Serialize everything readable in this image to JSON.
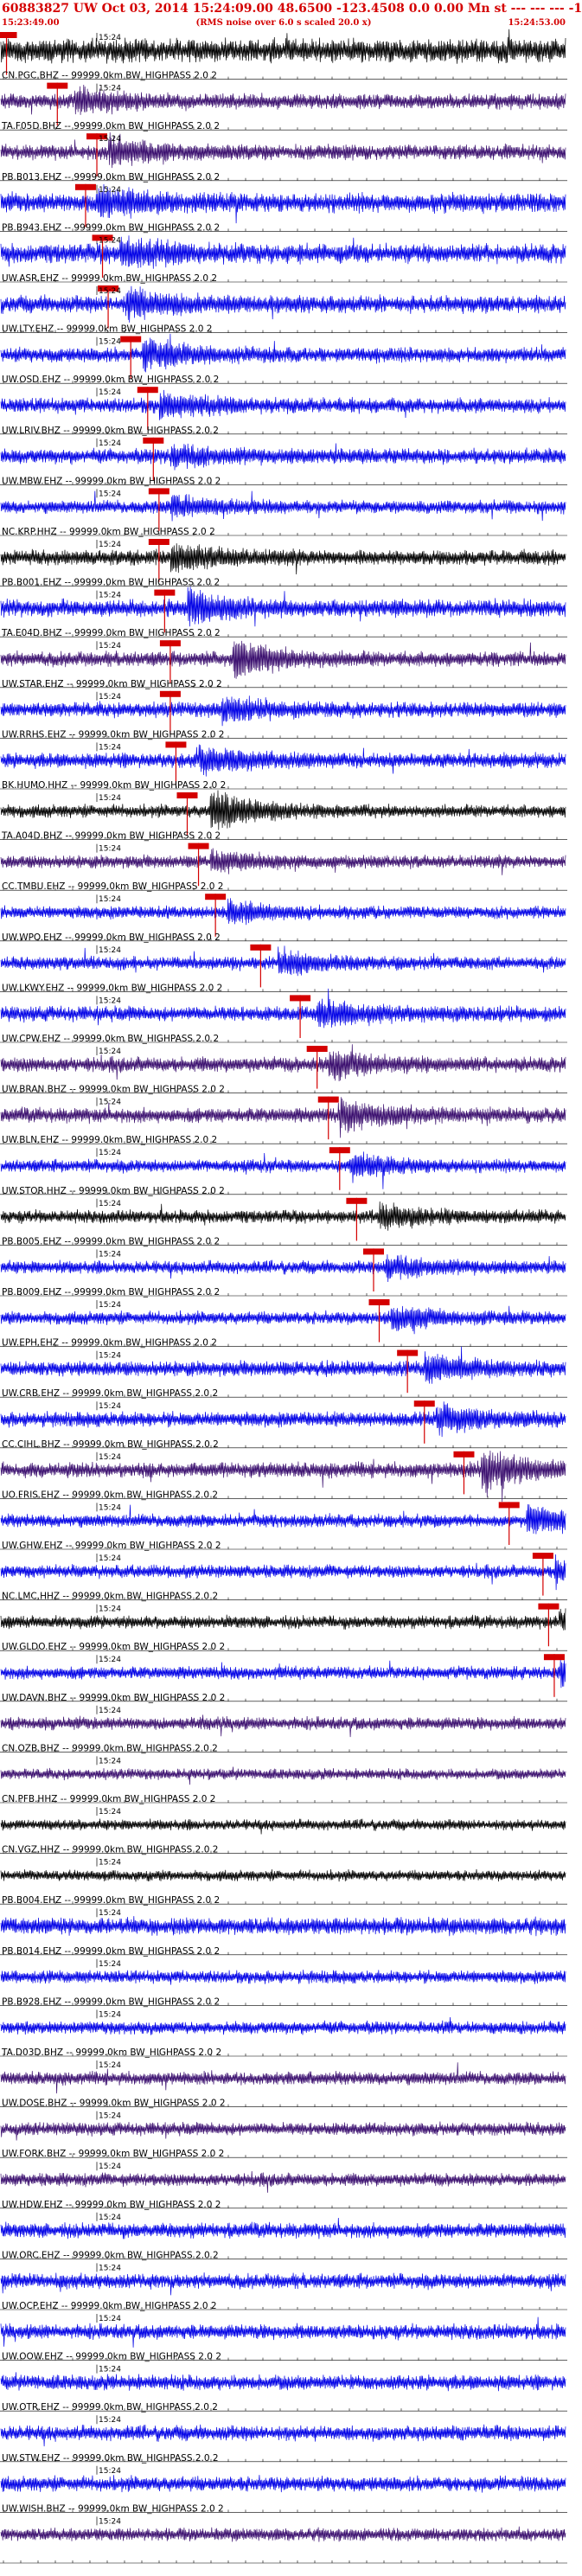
{
  "header": {
    "title": "60883827 UW Oct 03, 2014 15:24:09.00   48.6500  -123.4508   0.0  0.00  Mn st  ---  ---  ---   -1",
    "start_time": "15:23:49.00",
    "rms_note": "(RMS noise over 6.0 s scaled 20.0 x)",
    "end_time": "15:24:53.00"
  },
  "time_tick_label": "15:24",
  "filter_suffix": " -- 99999.0km BW_HIGHPASS  2.0  2",
  "colors": {
    "blue": "#0000e6",
    "black": "#000000",
    "purple": "#3a0e6e",
    "red": "#d40000"
  },
  "traces": [
    {
      "label": "",
      "color": "black",
      "pick": 0.01,
      "amp": 0.55,
      "burst": 0.0,
      "burst_amp": 0.0
    },
    {
      "label": "CN.PGC.BHZ",
      "color": "purple",
      "pick": 0.1,
      "amp": 0.35,
      "burst": 0.13,
      "burst_amp": 0.5
    },
    {
      "label": "TA.F05D.BHZ",
      "color": "purple",
      "pick": 0.17,
      "amp": 0.35,
      "burst": 0.19,
      "burst_amp": 0.6
    },
    {
      "label": "PB.B013.EHZ",
      "color": "blue",
      "pick": 0.15,
      "amp": 0.45,
      "burst": 0.17,
      "burst_amp": 0.55
    },
    {
      "label": "PB.B943.EHZ",
      "color": "blue",
      "pick": 0.18,
      "amp": 0.45,
      "burst": 0.21,
      "burst_amp": 0.55
    },
    {
      "label": "UW.ASR.EHZ",
      "color": "blue",
      "pick": 0.19,
      "amp": 0.4,
      "burst": 0.22,
      "burst_amp": 0.6
    },
    {
      "label": "UW.LTY.EHZ",
      "color": "blue",
      "pick": 0.23,
      "amp": 0.35,
      "burst": 0.25,
      "burst_amp": 0.55
    },
    {
      "label": "UW.OSD.EHZ",
      "color": "blue",
      "pick": 0.26,
      "amp": 0.35,
      "burst": 0.28,
      "burst_amp": 0.5
    },
    {
      "label": "UW.LRIV.BHZ",
      "color": "blue",
      "pick": 0.27,
      "amp": 0.35,
      "burst": 0.3,
      "burst_amp": 0.45
    },
    {
      "label": "UW.MBW.EHZ",
      "color": "blue",
      "pick": 0.28,
      "amp": 0.3,
      "burst": 0.3,
      "burst_amp": 0.45
    },
    {
      "label": "NC.KRP.HHZ",
      "color": "black",
      "pick": 0.28,
      "amp": 0.35,
      "burst": 0.3,
      "burst_amp": 0.55
    },
    {
      "label": "PB.B001.EHZ",
      "color": "blue",
      "pick": 0.29,
      "amp": 0.4,
      "burst": 0.33,
      "burst_amp": 0.6
    },
    {
      "label": "TA.E04D.BHZ",
      "color": "purple",
      "pick": 0.3,
      "amp": 0.35,
      "burst": 0.41,
      "burst_amp": 0.75
    },
    {
      "label": "UW.STAR.EHZ",
      "color": "blue",
      "pick": 0.3,
      "amp": 0.35,
      "burst": 0.39,
      "burst_amp": 0.45
    },
    {
      "label": "UW.RRHS.EHZ",
      "color": "blue",
      "pick": 0.31,
      "amp": 0.35,
      "burst": 0.35,
      "burst_amp": 0.55
    },
    {
      "label": "BK.HUMO.HHZ",
      "color": "black",
      "pick": 0.33,
      "amp": 0.3,
      "burst": 0.37,
      "burst_amp": 0.85
    },
    {
      "label": "TA.A04D.BHZ",
      "color": "purple",
      "pick": 0.35,
      "amp": 0.3,
      "burst": 0.37,
      "burst_amp": 0.4
    },
    {
      "label": "CC.TMBU.EHZ",
      "color": "blue",
      "pick": 0.38,
      "amp": 0.3,
      "burst": 0.4,
      "burst_amp": 0.4
    },
    {
      "label": "UW.WPO.EHZ",
      "color": "blue",
      "pick": 0.46,
      "amp": 0.3,
      "burst": 0.49,
      "burst_amp": 0.5
    },
    {
      "label": "UW.LKWY.EHZ",
      "color": "blue",
      "pick": 0.53,
      "amp": 0.35,
      "burst": 0.56,
      "burst_amp": 0.55
    },
    {
      "label": "UW.CPW.EHZ",
      "color": "purple",
      "pick": 0.56,
      "amp": 0.35,
      "burst": 0.58,
      "burst_amp": 0.55
    },
    {
      "label": "UW.BRAN.BHZ",
      "color": "purple",
      "pick": 0.58,
      "amp": 0.35,
      "burst": 0.6,
      "burst_amp": 0.6
    },
    {
      "label": "UW.BLN.EHZ",
      "color": "blue",
      "pick": 0.6,
      "amp": 0.3,
      "burst": 0.62,
      "burst_amp": 0.45
    },
    {
      "label": "UW.STOR.HHZ",
      "color": "black",
      "pick": 0.63,
      "amp": 0.3,
      "burst": 0.67,
      "burst_amp": 0.5
    },
    {
      "label": "PB.B005.EHZ",
      "color": "blue",
      "pick": 0.66,
      "amp": 0.3,
      "burst": 0.68,
      "burst_amp": 0.5
    },
    {
      "label": "PB.B009.EHZ",
      "color": "blue",
      "pick": 0.67,
      "amp": 0.3,
      "burst": 0.69,
      "burst_amp": 0.5
    },
    {
      "label": "UW.EPH.EHZ",
      "color": "blue",
      "pick": 0.72,
      "amp": 0.35,
      "burst": 0.75,
      "burst_amp": 0.55
    },
    {
      "label": "UW.CRB.EHZ",
      "color": "blue",
      "pick": 0.75,
      "amp": 0.35,
      "burst": 0.77,
      "burst_amp": 0.6
    },
    {
      "label": "CC.CIHL.BHZ",
      "color": "purple",
      "pick": 0.82,
      "amp": 0.35,
      "burst": 0.85,
      "burst_amp": 0.9
    },
    {
      "label": "UO.FRIS.EHZ",
      "color": "blue",
      "pick": 0.9,
      "amp": 0.3,
      "burst": 0.93,
      "burst_amp": 0.6
    },
    {
      "label": "UW.GHW.EHZ",
      "color": "blue",
      "pick": 0.96,
      "amp": 0.3,
      "burst": 0.98,
      "burst_amp": 0.55
    },
    {
      "label": "NC.LMC.HHZ",
      "color": "black",
      "pick": 0.97,
      "amp": 0.3,
      "burst": 0.99,
      "burst_amp": 0.5
    },
    {
      "label": "UW.GLDO.EHZ",
      "color": "blue",
      "pick": 0.98,
      "amp": 0.3,
      "burst": 0.99,
      "burst_amp": 0.5
    },
    {
      "label": "UW.DAVN.BHZ",
      "color": "purple",
      "pick": -1,
      "amp": 0.3,
      "burst": 0,
      "burst_amp": 0
    },
    {
      "label": "CN.OZB.BHZ",
      "color": "purple",
      "pick": -1,
      "amp": 0.25,
      "burst": 0,
      "burst_amp": 0
    },
    {
      "label": "CN.PFB.HHZ",
      "color": "black",
      "pick": -1,
      "amp": 0.25,
      "burst": 0,
      "burst_amp": 0
    },
    {
      "label": "CN.VGZ.HHZ",
      "color": "black",
      "pick": -1,
      "amp": 0.25,
      "burst": 0,
      "burst_amp": 0
    },
    {
      "label": "PB.B004.EHZ",
      "color": "blue",
      "pick": -1,
      "amp": 0.4,
      "burst": 0,
      "burst_amp": 0
    },
    {
      "label": "PB.B014.EHZ",
      "color": "blue",
      "pick": -1,
      "amp": 0.3,
      "burst": 0,
      "burst_amp": 0
    },
    {
      "label": "PB.B928.EHZ",
      "color": "blue",
      "pick": -1,
      "amp": 0.3,
      "burst": 0,
      "burst_amp": 0
    },
    {
      "label": "TA.D03D.BHZ",
      "color": "purple",
      "pick": -1,
      "amp": 0.3,
      "burst": 0,
      "burst_amp": 0
    },
    {
      "label": "UW.DOSE.BHZ",
      "color": "purple",
      "pick": -1,
      "amp": 0.3,
      "burst": 0,
      "burst_amp": 0
    },
    {
      "label": "UW.FORK.BHZ",
      "color": "purple",
      "pick": -1,
      "amp": 0.3,
      "burst": 0,
      "burst_amp": 0
    },
    {
      "label": "UW.HDW.EHZ",
      "color": "blue",
      "pick": -1,
      "amp": 0.35,
      "burst": 0,
      "burst_amp": 0
    },
    {
      "label": "UW.ORC.EHZ",
      "color": "blue",
      "pick": -1,
      "amp": 0.35,
      "burst": 0,
      "burst_amp": 0
    },
    {
      "label": "UW.OCP.EHZ",
      "color": "blue",
      "pick": -1,
      "amp": 0.35,
      "burst": 0,
      "burst_amp": 0
    },
    {
      "label": "UW.OOW.EHZ",
      "color": "blue",
      "pick": -1,
      "amp": 0.35,
      "burst": 0,
      "burst_amp": 0
    },
    {
      "label": "UW.OTR.EHZ",
      "color": "blue",
      "pick": -1,
      "amp": 0.35,
      "burst": 0,
      "burst_amp": 0
    },
    {
      "label": "UW.STW.EHZ",
      "color": "blue",
      "pick": -1,
      "amp": 0.35,
      "burst": 0,
      "burst_amp": 0
    },
    {
      "label": "UW.WISH.BHZ",
      "color": "purple",
      "pick": -1,
      "amp": 0.3,
      "burst": 0,
      "burst_amp": 0
    }
  ]
}
